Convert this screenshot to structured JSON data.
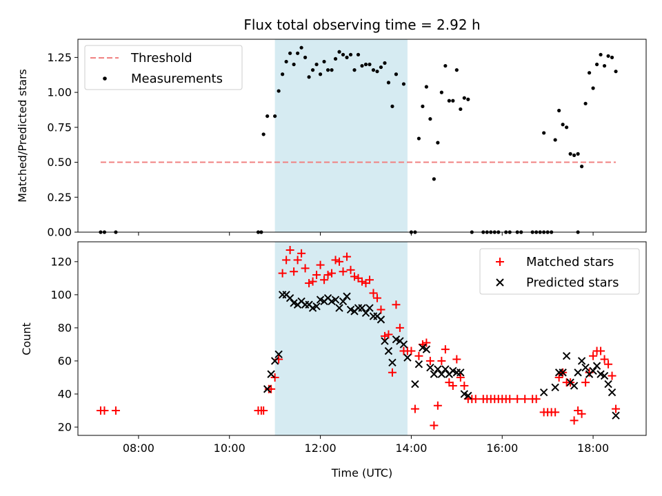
{
  "chart_data": [
    {
      "type": "scatter",
      "title": "Flux total observing time = 2.92 h",
      "xlabel": "",
      "ylabel": "Matched/Predicted stars",
      "xlim": [
        "06:40",
        "19:10"
      ],
      "ylim": [
        0,
        1.38
      ],
      "yticks": [
        "0.00",
        "0.25",
        "0.50",
        "0.75",
        "1.00",
        "1.25"
      ],
      "grid": false,
      "legend_placement": "top-left",
      "shaded_interval": [
        "11:00",
        "13:55"
      ],
      "shade_color": "#add8e6",
      "threshold": {
        "name": "Threshold",
        "value": 0.5,
        "x_range": [
          "07:10",
          "18:30"
        ],
        "color": "#f08080",
        "style": "dashed"
      },
      "series": [
        {
          "name": "Measurements",
          "color": "#000000",
          "marker": "dot",
          "points": [
            [
              "07:10",
              0
            ],
            [
              "07:15",
              0
            ],
            [
              "07:30",
              0
            ],
            [
              "10:38",
              0
            ],
            [
              "10:42",
              0
            ],
            [
              "10:45",
              0.7
            ],
            [
              "10:50",
              0.83
            ],
            [
              "11:00",
              0.83
            ],
            [
              "11:05",
              1.01
            ],
            [
              "11:10",
              1.13
            ],
            [
              "11:15",
              1.22
            ],
            [
              "11:20",
              1.28
            ],
            [
              "11:25",
              1.2
            ],
            [
              "11:30",
              1.28
            ],
            [
              "11:35",
              1.32
            ],
            [
              "11:40",
              1.25
            ],
            [
              "11:45",
              1.11
            ],
            [
              "11:50",
              1.16
            ],
            [
              "11:55",
              1.2
            ],
            [
              "12:00",
              1.13
            ],
            [
              "12:05",
              1.22
            ],
            [
              "12:10",
              1.16
            ],
            [
              "12:15",
              1.16
            ],
            [
              "12:20",
              1.24
            ],
            [
              "12:25",
              1.29
            ],
            [
              "12:30",
              1.27
            ],
            [
              "12:35",
              1.25
            ],
            [
              "12:40",
              1.27
            ],
            [
              "12:45",
              1.16
            ],
            [
              "12:50",
              1.27
            ],
            [
              "12:55",
              1.19
            ],
            [
              "13:00",
              1.2
            ],
            [
              "13:05",
              1.2
            ],
            [
              "13:10",
              1.16
            ],
            [
              "13:15",
              1.15
            ],
            [
              "13:20",
              1.18
            ],
            [
              "13:25",
              1.21
            ],
            [
              "13:30",
              1.07
            ],
            [
              "13:35",
              0.9
            ],
            [
              "13:40",
              1.13
            ],
            [
              "13:50",
              1.06
            ],
            [
              "14:00",
              0
            ],
            [
              "14:05",
              0
            ],
            [
              "14:10",
              0.67
            ],
            [
              "14:15",
              0.9
            ],
            [
              "14:20",
              1.04
            ],
            [
              "14:25",
              0.81
            ],
            [
              "14:30",
              0.38
            ],
            [
              "14:35",
              0.64
            ],
            [
              "14:40",
              1.0
            ],
            [
              "14:45",
              1.19
            ],
            [
              "14:50",
              0.94
            ],
            [
              "14:55",
              0.94
            ],
            [
              "15:00",
              1.16
            ],
            [
              "15:05",
              0.88
            ],
            [
              "15:10",
              0.96
            ],
            [
              "15:15",
              0.95
            ],
            [
              "15:20",
              0
            ],
            [
              "15:35",
              0
            ],
            [
              "15:40",
              0
            ],
            [
              "15:45",
              0
            ],
            [
              "15:50",
              0
            ],
            [
              "15:55",
              0
            ],
            [
              "16:05",
              0
            ],
            [
              "16:10",
              0
            ],
            [
              "16:20",
              0
            ],
            [
              "16:25",
              0
            ],
            [
              "16:40",
              0
            ],
            [
              "16:45",
              0
            ],
            [
              "16:50",
              0
            ],
            [
              "16:55",
              0
            ],
            [
              "17:00",
              0
            ],
            [
              "17:05",
              0
            ],
            [
              "17:40",
              0
            ],
            [
              "16:55",
              0.71
            ],
            [
              "17:10",
              0.66
            ],
            [
              "17:15",
              0.87
            ],
            [
              "17:20",
              0.77
            ],
            [
              "17:25",
              0.75
            ],
            [
              "17:30",
              0.56
            ],
            [
              "17:35",
              0.55
            ],
            [
              "17:40",
              0.56
            ],
            [
              "17:45",
              0.47
            ],
            [
              "17:50",
              0.92
            ],
            [
              "17:55",
              1.14
            ],
            [
              "18:00",
              1.03
            ],
            [
              "18:05",
              1.2
            ],
            [
              "18:10",
              1.27
            ],
            [
              "18:15",
              1.19
            ],
            [
              "18:20",
              1.26
            ],
            [
              "18:25",
              1.25
            ],
            [
              "18:30",
              1.15
            ]
          ]
        }
      ]
    },
    {
      "type": "scatter",
      "title": "",
      "xlabel": "Time (UTC)",
      "ylabel": "Count",
      "xlim": [
        "06:40",
        "19:10"
      ],
      "ylim": [
        15,
        132
      ],
      "xticks": [
        "08:00",
        "10:00",
        "12:00",
        "14:00",
        "16:00",
        "18:00"
      ],
      "yticks": [
        "20",
        "40",
        "60",
        "80",
        "100",
        "120"
      ],
      "grid": false,
      "legend_placement": "top-right",
      "shaded_interval": [
        "11:00",
        "13:55"
      ],
      "shade_color": "#add8e6",
      "series": [
        {
          "name": "Matched stars",
          "color": "#ff0000",
          "marker": "plus",
          "points": [
            [
              "07:10",
              30
            ],
            [
              "07:15",
              30
            ],
            [
              "07:30",
              30
            ],
            [
              "10:38",
              30
            ],
            [
              "10:42",
              30
            ],
            [
              "10:45",
              30
            ],
            [
              "10:52",
              43
            ],
            [
              "10:55",
              43
            ],
            [
              "11:00",
              50
            ],
            [
              "11:05",
              61
            ],
            [
              "11:10",
              113
            ],
            [
              "11:15",
              121
            ],
            [
              "11:20",
              127
            ],
            [
              "11:25",
              114
            ],
            [
              "11:30",
              121
            ],
            [
              "11:35",
              125
            ],
            [
              "11:40",
              116
            ],
            [
              "11:45",
              107
            ],
            [
              "11:50",
              108
            ],
            [
              "11:55",
              112
            ],
            [
              "12:00",
              118
            ],
            [
              "12:05",
              109
            ],
            [
              "12:10",
              112
            ],
            [
              "12:15",
              113
            ],
            [
              "12:20",
              121
            ],
            [
              "12:25",
              120
            ],
            [
              "12:30",
              114
            ],
            [
              "12:35",
              123
            ],
            [
              "12:40",
              115
            ],
            [
              "12:45",
              111
            ],
            [
              "12:50",
              110
            ],
            [
              "12:55",
              108
            ],
            [
              "13:00",
              107
            ],
            [
              "13:05",
              109
            ],
            [
              "13:10",
              101
            ],
            [
              "13:15",
              98
            ],
            [
              "13:20",
              91
            ],
            [
              "13:25",
              75
            ],
            [
              "13:30",
              76
            ],
            [
              "13:35",
              53
            ],
            [
              "13:40",
              94
            ],
            [
              "13:45",
              80
            ],
            [
              "13:50",
              66
            ],
            [
              "13:55",
              66
            ],
            [
              "14:00",
              66
            ],
            [
              "14:05",
              31
            ],
            [
              "14:10",
              63
            ],
            [
              "14:15",
              70
            ],
            [
              "14:20",
              71
            ],
            [
              "14:25",
              60
            ],
            [
              "14:30",
              21
            ],
            [
              "14:35",
              33
            ],
            [
              "14:40",
              60
            ],
            [
              "14:45",
              67
            ],
            [
              "14:50",
              47
            ],
            [
              "14:55",
              45
            ],
            [
              "15:00",
              61
            ],
            [
              "15:05",
              50
            ],
            [
              "15:10",
              45
            ],
            [
              "15:15",
              37
            ],
            [
              "15:20",
              37
            ],
            [
              "15:25",
              37
            ],
            [
              "15:35",
              37
            ],
            [
              "15:40",
              37
            ],
            [
              "15:45",
              37
            ],
            [
              "15:50",
              37
            ],
            [
              "15:55",
              37
            ],
            [
              "16:00",
              37
            ],
            [
              "16:05",
              37
            ],
            [
              "16:10",
              37
            ],
            [
              "16:20",
              37
            ],
            [
              "16:30",
              37
            ],
            [
              "16:40",
              37
            ],
            [
              "16:45",
              37
            ],
            [
              "16:55",
              29
            ],
            [
              "17:00",
              29
            ],
            [
              "17:05",
              29
            ],
            [
              "17:10",
              29
            ],
            [
              "17:15",
              50
            ],
            [
              "17:20",
              53
            ],
            [
              "17:25",
              47
            ],
            [
              "17:30",
              47
            ],
            [
              "17:35",
              24
            ],
            [
              "17:40",
              30
            ],
            [
              "17:45",
              28
            ],
            [
              "17:50",
              47
            ],
            [
              "17:55",
              53
            ],
            [
              "18:00",
              63
            ],
            [
              "18:05",
              66
            ],
            [
              "18:10",
              66
            ],
            [
              "18:15",
              61
            ],
            [
              "18:20",
              58
            ],
            [
              "18:25",
              51
            ],
            [
              "18:30",
              31
            ]
          ]
        },
        {
          "name": "Predicted stars",
          "color": "#000000",
          "marker": "x",
          "points": [
            [
              "10:50",
              43
            ],
            [
              "10:55",
              52
            ],
            [
              "11:00",
              60
            ],
            [
              "11:05",
              64
            ],
            [
              "11:10",
              100
            ],
            [
              "11:15",
              100
            ],
            [
              "11:20",
              98
            ],
            [
              "11:25",
              95
            ],
            [
              "11:30",
              94
            ],
            [
              "11:35",
              96
            ],
            [
              "11:40",
              94
            ],
            [
              "11:45",
              94
            ],
            [
              "11:50",
              92
            ],
            [
              "11:55",
              93
            ],
            [
              "12:00",
              97
            ],
            [
              "12:05",
              96
            ],
            [
              "12:10",
              98
            ],
            [
              "12:15",
              96
            ],
            [
              "12:20",
              97
            ],
            [
              "12:25",
              92
            ],
            [
              "12:30",
              96
            ],
            [
              "12:35",
              99
            ],
            [
              "12:40",
              91
            ],
            [
              "12:45",
              90
            ],
            [
              "12:50",
              92
            ],
            [
              "12:55",
              92
            ],
            [
              "13:00",
              89
            ],
            [
              "13:05",
              92
            ],
            [
              "13:10",
              87
            ],
            [
              "13:15",
              87
            ],
            [
              "13:20",
              85
            ],
            [
              "13:25",
              72
            ],
            [
              "13:30",
              66
            ],
            [
              "13:35",
              59
            ],
            [
              "13:40",
              73
            ],
            [
              "13:45",
              72
            ],
            [
              "13:50",
              70
            ],
            [
              "13:55",
              62
            ],
            [
              "14:05",
              46
            ],
            [
              "14:10",
              58
            ],
            [
              "14:15",
              68
            ],
            [
              "14:20",
              67
            ],
            [
              "14:25",
              56
            ],
            [
              "14:30",
              52
            ],
            [
              "14:35",
              55
            ],
            [
              "14:40",
              52
            ],
            [
              "14:45",
              55
            ],
            [
              "14:50",
              52
            ],
            [
              "14:55",
              54
            ],
            [
              "15:00",
              53
            ],
            [
              "15:05",
              53
            ],
            [
              "15:10",
              40
            ],
            [
              "15:15",
              39
            ],
            [
              "16:55",
              41
            ],
            [
              "17:10",
              44
            ],
            [
              "17:15",
              53
            ],
            [
              "17:20",
              53
            ],
            [
              "17:25",
              63
            ],
            [
              "17:30",
              47
            ],
            [
              "17:35",
              45
            ],
            [
              "17:40",
              53
            ],
            [
              "17:45",
              60
            ],
            [
              "17:50",
              56
            ],
            [
              "17:55",
              52
            ],
            [
              "18:00",
              54
            ],
            [
              "18:05",
              57
            ],
            [
              "18:10",
              52
            ],
            [
              "18:15",
              51
            ],
            [
              "18:20",
              46
            ],
            [
              "18:25",
              41
            ],
            [
              "18:30",
              27
            ]
          ]
        }
      ]
    }
  ]
}
